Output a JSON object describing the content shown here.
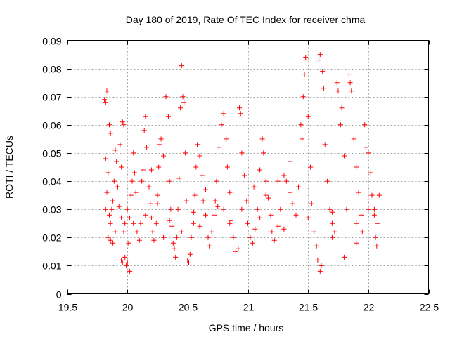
{
  "chart_data": {
    "type": "scatter",
    "title": "Day 180 of 2019, Rate Of TEC Index for receiver chma",
    "xlabel": "GPS time / hours",
    "ylabel": "ROTI / TECUs",
    "xlim": [
      19.5,
      22.5
    ],
    "ylim": [
      0,
      0.09
    ],
    "xticks": [
      19.5,
      20,
      20.5,
      21,
      21.5,
      22,
      22.5
    ],
    "xtick_labels": [
      "19.5",
      "20",
      "20.5",
      "21",
      "21.5",
      "22",
      "22.5"
    ],
    "yticks": [
      0,
      0.01,
      0.02,
      0.03,
      0.04,
      0.05,
      0.06,
      0.07,
      0.08,
      0.09
    ],
    "ytick_labels": [
      "0",
      "0.01",
      "0.02",
      "0.03",
      "0.04",
      "0.05",
      "0.06",
      "0.07",
      "0.08",
      "0.09"
    ],
    "grid": true,
    "marker": "+",
    "color": "#ff0000",
    "series": [
      {
        "name": "ROTI",
        "points": [
          [
            19.81,
            0.069
          ],
          [
            19.82,
            0.068
          ],
          [
            19.83,
            0.072
          ],
          [
            19.82,
            0.048
          ],
          [
            19.84,
            0.043
          ],
          [
            19.85,
            0.06
          ],
          [
            19.86,
            0.057
          ],
          [
            19.82,
            0.03
          ],
          [
            19.83,
            0.036
          ],
          [
            19.85,
            0.028
          ],
          [
            19.86,
            0.025
          ],
          [
            19.84,
            0.02
          ],
          [
            19.86,
            0.019
          ],
          [
            19.88,
            0.018
          ],
          [
            19.87,
            0.03
          ],
          [
            19.88,
            0.033
          ],
          [
            19.89,
            0.04
          ],
          [
            19.9,
            0.051
          ],
          [
            19.91,
            0.047
          ],
          [
            19.92,
            0.038
          ],
          [
            19.93,
            0.031
          ],
          [
            19.94,
            0.053
          ],
          [
            19.95,
            0.045
          ],
          [
            19.96,
            0.061
          ],
          [
            19.97,
            0.06
          ],
          [
            19.95,
            0.012
          ],
          [
            19.96,
            0.011
          ],
          [
            19.98,
            0.013
          ],
          [
            19.99,
            0.01
          ],
          [
            20.0,
            0.011
          ],
          [
            20.02,
            0.008
          ],
          [
            20.01,
            0.018
          ],
          [
            19.97,
            0.022
          ],
          [
            19.98,
            0.025
          ],
          [
            20.0,
            0.03
          ],
          [
            20.02,
            0.027
          ],
          [
            20.03,
            0.035
          ],
          [
            20.04,
            0.04
          ],
          [
            20.05,
            0.05
          ],
          [
            20.06,
            0.043
          ],
          [
            20.07,
            0.036
          ],
          [
            20.08,
            0.022
          ],
          [
            20.1,
            0.019
          ],
          [
            20.11,
            0.025
          ],
          [
            20.12,
            0.04
          ],
          [
            20.13,
            0.044
          ],
          [
            20.14,
            0.058
          ],
          [
            20.15,
            0.063
          ],
          [
            20.16,
            0.052
          ],
          [
            20.18,
            0.038
          ],
          [
            20.19,
            0.032
          ],
          [
            20.2,
            0.027
          ],
          [
            20.21,
            0.022
          ],
          [
            20.22,
            0.019
          ],
          [
            20.24,
            0.025
          ],
          [
            20.25,
            0.035
          ],
          [
            20.26,
            0.045
          ],
          [
            20.27,
            0.053
          ],
          [
            20.28,
            0.055
          ],
          [
            20.3,
            0.049
          ],
          [
            20.32,
            0.07
          ],
          [
            20.34,
            0.063
          ],
          [
            20.35,
            0.04
          ],
          [
            20.36,
            0.03
          ],
          [
            20.37,
            0.024
          ],
          [
            20.38,
            0.018
          ],
          [
            20.39,
            0.016
          ],
          [
            20.4,
            0.013
          ],
          [
            20.41,
            0.02
          ],
          [
            20.42,
            0.03
          ],
          [
            20.43,
            0.041
          ],
          [
            20.44,
            0.066
          ],
          [
            20.45,
            0.081
          ],
          [
            20.46,
            0.07
          ],
          [
            20.47,
            0.068
          ],
          [
            20.48,
            0.05
          ],
          [
            20.49,
            0.033
          ],
          [
            20.5,
            0.012
          ],
          [
            20.51,
            0.011
          ],
          [
            20.52,
            0.014
          ],
          [
            20.53,
            0.02
          ],
          [
            20.55,
            0.025
          ],
          [
            20.56,
            0.035
          ],
          [
            20.57,
            0.045
          ],
          [
            20.58,
            0.053
          ],
          [
            20.6,
            0.049
          ],
          [
            20.62,
            0.042
          ],
          [
            20.63,
            0.033
          ],
          [
            20.65,
            0.028
          ],
          [
            20.67,
            0.02
          ],
          [
            20.68,
            0.017
          ],
          [
            20.7,
            0.022
          ],
          [
            20.72,
            0.028
          ],
          [
            20.73,
            0.033
          ],
          [
            20.74,
            0.04
          ],
          [
            20.76,
            0.052
          ],
          [
            20.78,
            0.06
          ],
          [
            20.8,
            0.064
          ],
          [
            20.82,
            0.055
          ],
          [
            20.83,
            0.045
          ],
          [
            20.85,
            0.036
          ],
          [
            20.86,
            0.026
          ],
          [
            20.88,
            0.02
          ],
          [
            20.9,
            0.015
          ],
          [
            20.92,
            0.016
          ],
          [
            20.93,
            0.066
          ],
          [
            20.94,
            0.064
          ],
          [
            20.95,
            0.05
          ],
          [
            20.97,
            0.042
          ],
          [
            20.99,
            0.033
          ],
          [
            21.0,
            0.025
          ],
          [
            21.02,
            0.02
          ],
          [
            21.04,
            0.018
          ],
          [
            21.06,
            0.023
          ],
          [
            21.08,
            0.03
          ],
          [
            21.1,
            0.044
          ],
          [
            21.12,
            0.055
          ],
          [
            21.13,
            0.05
          ],
          [
            21.15,
            0.04
          ],
          [
            21.17,
            0.034
          ],
          [
            21.19,
            0.028
          ],
          [
            21.2,
            0.022
          ],
          [
            21.22,
            0.019
          ],
          [
            21.25,
            0.024
          ],
          [
            21.27,
            0.03
          ],
          [
            21.3,
            0.042
          ],
          [
            21.32,
            0.04
          ],
          [
            21.35,
            0.036
          ],
          [
            21.37,
            0.032
          ],
          [
            21.4,
            0.028
          ],
          [
            21.42,
            0.038
          ],
          [
            21.44,
            0.06
          ],
          [
            21.45,
            0.055
          ],
          [
            21.46,
            0.07
          ],
          [
            21.47,
            0.078
          ],
          [
            21.48,
            0.084
          ],
          [
            21.49,
            0.083
          ],
          [
            21.5,
            0.063
          ],
          [
            21.52,
            0.045
          ],
          [
            21.53,
            0.032
          ],
          [
            21.55,
            0.022
          ],
          [
            21.57,
            0.017
          ],
          [
            21.58,
            0.012
          ],
          [
            21.6,
            0.008
          ],
          [
            21.61,
            0.01
          ],
          [
            21.6,
            0.085
          ],
          [
            21.59,
            0.083
          ],
          [
            21.62,
            0.079
          ],
          [
            21.63,
            0.073
          ],
          [
            21.64,
            0.053
          ],
          [
            21.66,
            0.04
          ],
          [
            21.68,
            0.03
          ],
          [
            21.7,
            0.025
          ],
          [
            21.72,
            0.022
          ],
          [
            21.74,
            0.075
          ],
          [
            21.75,
            0.072
          ],
          [
            21.77,
            0.06
          ],
          [
            21.78,
            0.066
          ],
          [
            21.8,
            0.049
          ],
          [
            21.82,
            0.03
          ],
          [
            21.84,
            0.078
          ],
          [
            21.85,
            0.075
          ],
          [
            21.86,
            0.072
          ],
          [
            21.88,
            0.055
          ],
          [
            21.9,
            0.045
          ],
          [
            21.92,
            0.036
          ],
          [
            21.94,
            0.028
          ],
          [
            21.95,
            0.022
          ],
          [
            21.97,
            0.06
          ],
          [
            21.98,
            0.052
          ],
          [
            22.0,
            0.05
          ],
          [
            22.02,
            0.043
          ],
          [
            22.03,
            0.035
          ],
          [
            22.05,
            0.028
          ],
          [
            22.06,
            0.02
          ],
          [
            22.07,
            0.017
          ],
          [
            22.08,
            0.025
          ],
          [
            22.09,
            0.035
          ],
          [
            22.0,
            0.03
          ],
          [
            21.9,
            0.018
          ],
          [
            21.8,
            0.013
          ],
          [
            21.7,
            0.02
          ],
          [
            21.35,
            0.047
          ],
          [
            21.25,
            0.04
          ],
          [
            21.15,
            0.035
          ],
          [
            21.05,
            0.038
          ],
          [
            20.95,
            0.03
          ],
          [
            20.85,
            0.025
          ],
          [
            20.75,
            0.031
          ],
          [
            20.65,
            0.037
          ],
          [
            20.55,
            0.029
          ],
          [
            20.45,
            0.022
          ],
          [
            20.35,
            0.026
          ],
          [
            20.25,
            0.032
          ],
          [
            20.15,
            0.028
          ],
          [
            20.05,
            0.025
          ],
          [
            19.95,
            0.027
          ],
          [
            19.9,
            0.022
          ],
          [
            20.2,
            0.044
          ],
          [
            20.3,
            0.02
          ],
          [
            20.6,
            0.024
          ],
          [
            20.8,
            0.03
          ],
          [
            21.1,
            0.027
          ],
          [
            21.3,
            0.023
          ],
          [
            21.5,
            0.027
          ],
          [
            21.7,
            0.029
          ],
          [
            21.9,
            0.025
          ],
          [
            22.05,
            0.03
          ]
        ]
      }
    ]
  }
}
